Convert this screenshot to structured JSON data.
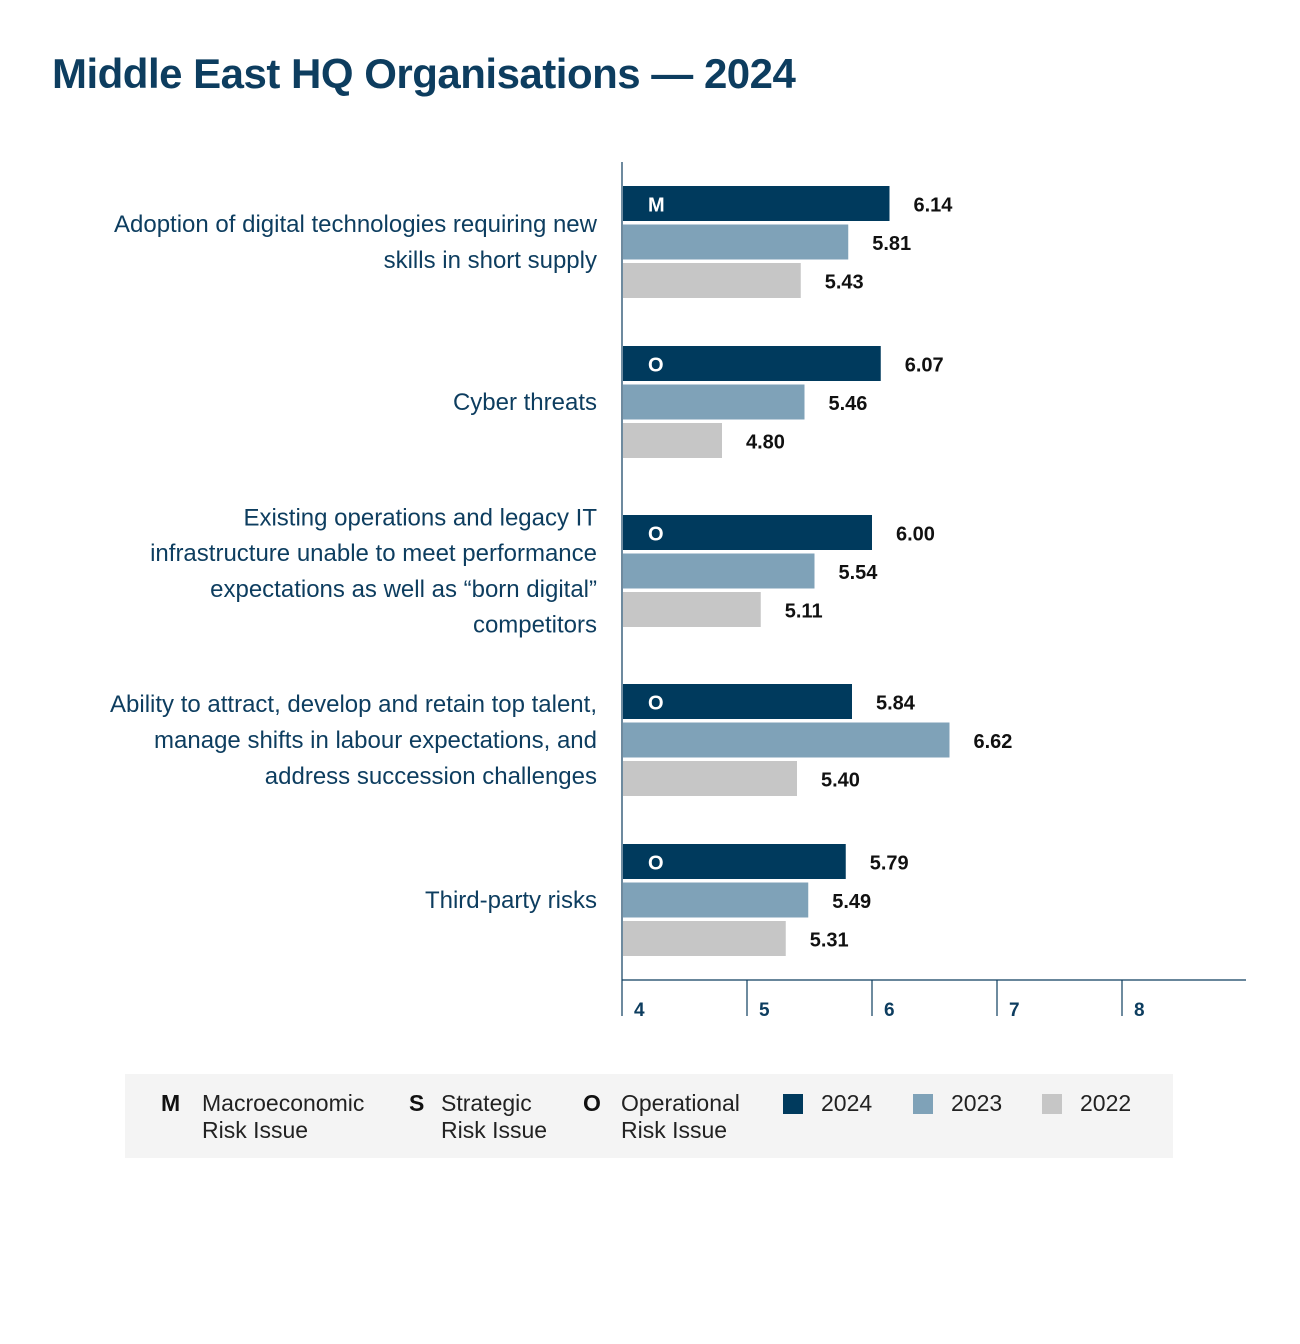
{
  "title": "Middle East HQ Organisations — 2024",
  "colors": {
    "2024": "#003a5d",
    "2023": "#7fa2b8",
    "2022": "#c6c6c6",
    "axis": "#0d3d5f"
  },
  "legend": {
    "types": [
      {
        "key": "M",
        "line1": "Macroeconomic",
        "line2": "Risk Issue"
      },
      {
        "key": "S",
        "line1": "Strategic",
        "line2": "Risk Issue"
      },
      {
        "key": "O",
        "line1": "Operational",
        "line2": "Risk Issue"
      }
    ],
    "years": [
      "2024",
      "2023",
      "2022"
    ]
  },
  "chart_data": {
    "type": "bar",
    "orientation": "horizontal",
    "categories": [
      "Adoption of digital technologies requiring new skills in short supply",
      "Cyber threats",
      "Existing operations and legacy IT infrastructure unable to meet performance expectations as well as “born digital” competitors",
      "Ability to attract, develop and retain top talent, manage shifts in labour expectations, and address succession challenges",
      "Third-party risks"
    ],
    "category_lines": [
      [
        "Adoption of digital technologies requiring new",
        "skills in short supply"
      ],
      [
        "Cyber threats"
      ],
      [
        "Existing operations and legacy IT",
        "infrastructure unable to meet performance",
        "expectations as well as “born digital”",
        "competitors"
      ],
      [
        "Ability to attract, develop and retain top talent,",
        "manage shifts in labour expectations, and",
        "address succession challenges"
      ],
      [
        "Third-party risks"
      ]
    ],
    "risk_type": [
      "M",
      "O",
      "O",
      "O",
      "O"
    ],
    "series": [
      {
        "name": "2024",
        "values": [
          6.14,
          6.07,
          6.0,
          5.84,
          5.79
        ],
        "labels": [
          "6.14",
          "6.07",
          "6.00",
          "5.84",
          "5.79"
        ]
      },
      {
        "name": "2023",
        "values": [
          5.81,
          5.46,
          5.54,
          6.62,
          5.49
        ],
        "labels": [
          "5.81",
          "5.46",
          "5.54",
          "6.62",
          "5.49"
        ]
      },
      {
        "name": "2022",
        "values": [
          5.43,
          4.8,
          5.11,
          5.4,
          5.31
        ],
        "labels": [
          "5.43",
          "4.80",
          "5.11",
          "5.40",
          "5.31"
        ]
      }
    ],
    "xticks": [
      "4",
      "5",
      "6",
      "7",
      "8"
    ],
    "xlim": [
      4,
      9
    ],
    "grid": false,
    "legend_position": "bottom"
  }
}
